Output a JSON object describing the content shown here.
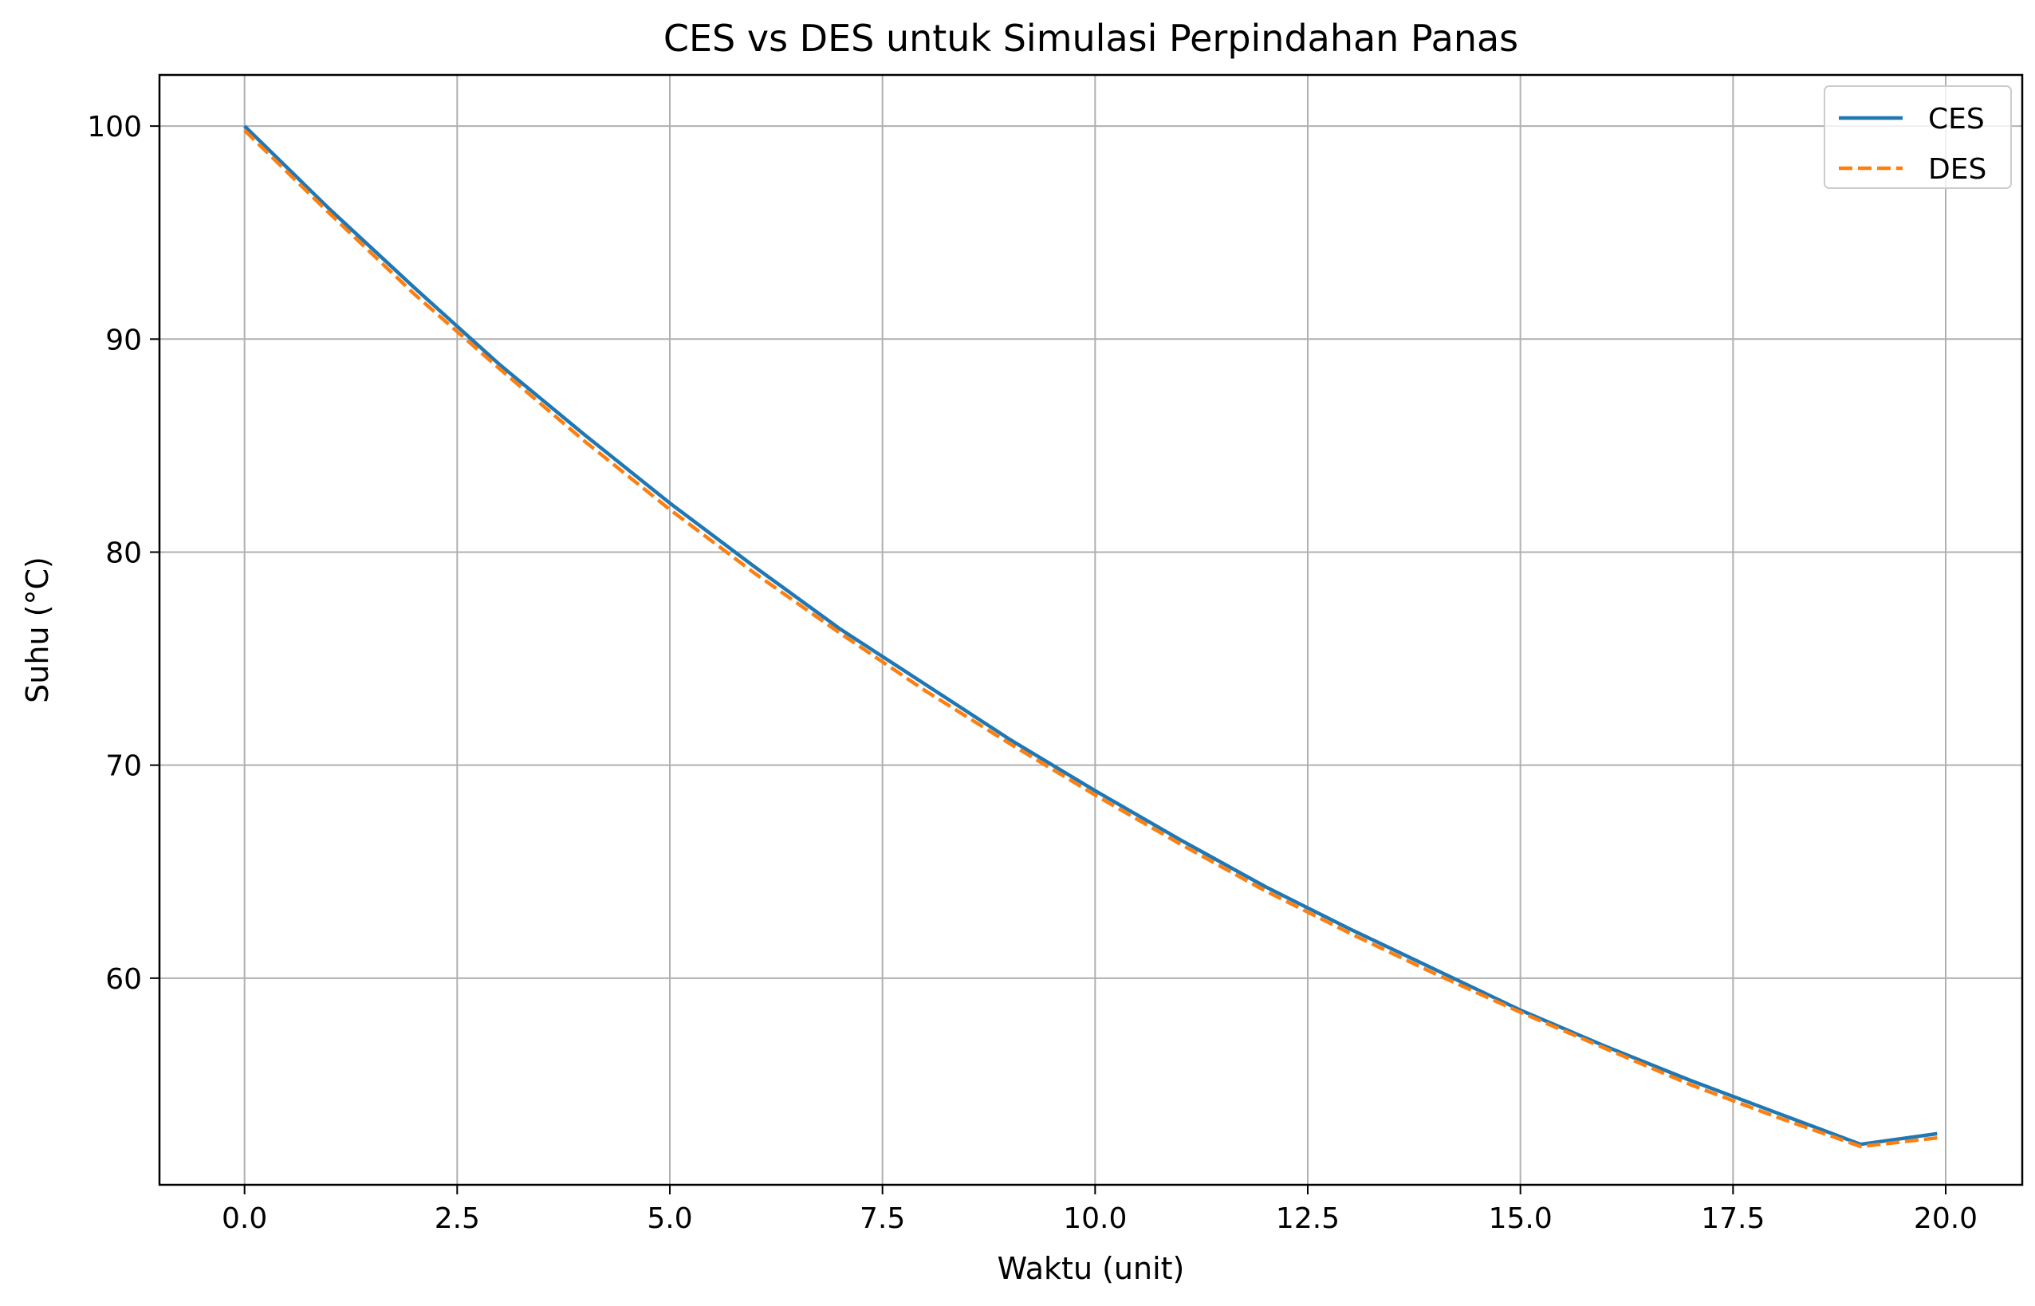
{
  "chart_data": {
    "type": "line",
    "title": "CES vs DES untuk Simulasi Perpindahan Panas",
    "xlabel": "Waktu (unit)",
    "ylabel": "Suhu (°C)",
    "xlim": [
      -1.0,
      20.9
    ],
    "ylim": [
      50.3,
      102.4
    ],
    "xticks": [
      0.0,
      2.5,
      5.0,
      7.5,
      10.0,
      12.5,
      15.0,
      17.5,
      20.0
    ],
    "xtick_labels": [
      "0.0",
      "2.5",
      "5.0",
      "7.5",
      "10.0",
      "12.5",
      "15.0",
      "17.5",
      "20.0"
    ],
    "yticks": [
      60,
      70,
      80,
      90,
      100
    ],
    "ytick_labels": [
      "60",
      "70",
      "80",
      "90",
      "100"
    ],
    "grid": true,
    "legend_position": "top-right",
    "series": [
      {
        "name": "CES",
        "color": "#1f77b4",
        "style": "solid",
        "x": [
          0.0,
          1.0,
          2.0,
          3.0,
          4.0,
          5.0,
          6.0,
          7.0,
          8.0,
          9.0,
          10.0,
          11.0,
          12.0,
          13.0,
          14.0,
          15.0,
          16.0,
          17.0,
          18.0,
          19.0,
          19.9
        ],
        "values": [
          100.0,
          96.1,
          92.4,
          88.8,
          85.5,
          82.3,
          79.3,
          76.4,
          73.8,
          71.2,
          68.8,
          66.5,
          64.3,
          62.3,
          60.4,
          58.5,
          56.8,
          55.2,
          53.7,
          52.2,
          52.7
        ]
      },
      {
        "name": "DES",
        "color": "#ff7f0e",
        "style": "dashed",
        "x": [
          0.0,
          1.0,
          2.0,
          3.0,
          4.0,
          5.0,
          6.0,
          7.0,
          8.0,
          9.0,
          10.0,
          11.0,
          12.0,
          13.0,
          14.0,
          15.0,
          16.0,
          17.0,
          18.0,
          19.0,
          19.9
        ],
        "values": [
          99.8,
          95.9,
          92.1,
          88.6,
          85.2,
          82.0,
          79.0,
          76.2,
          73.5,
          71.0,
          68.6,
          66.3,
          64.1,
          62.1,
          60.2,
          58.4,
          56.7,
          55.0,
          53.5,
          52.1,
          52.5
        ]
      }
    ]
  }
}
